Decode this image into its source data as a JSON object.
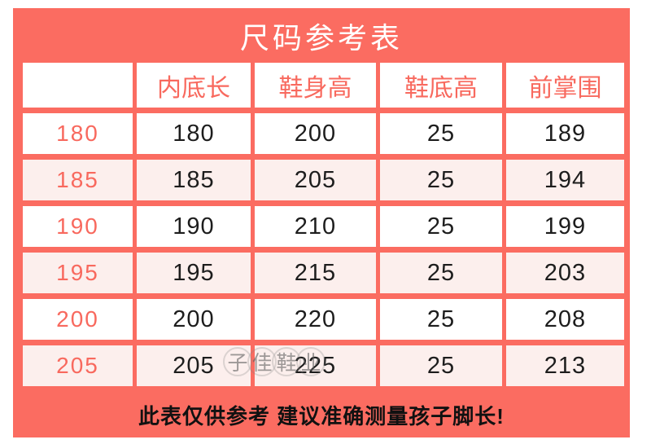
{
  "chart_data": {
    "type": "table",
    "title": "尺码参考表",
    "corner_label": "",
    "columns": [
      "内底长",
      "鞋身高",
      "鞋底高",
      "前掌围"
    ],
    "rows": [
      {
        "size": "180",
        "values": [
          "180",
          "200",
          "25",
          "189"
        ]
      },
      {
        "size": "185",
        "values": [
          "185",
          "205",
          "25",
          "194"
        ]
      },
      {
        "size": "190",
        "values": [
          "190",
          "210",
          "25",
          "199"
        ]
      },
      {
        "size": "195",
        "values": [
          "195",
          "215",
          "25",
          "203"
        ]
      },
      {
        "size": "200",
        "values": [
          "200",
          "220",
          "25",
          "208"
        ]
      },
      {
        "size": "205",
        "values": [
          "205",
          "225",
          "25",
          "213"
        ]
      }
    ],
    "footer_note": "此表仅供参考 建议准确测量孩子脚长!"
  },
  "watermark": {
    "text": "子佳鞋业",
    "chars": [
      "子",
      "佳",
      "鞋",
      "业"
    ]
  },
  "colors": {
    "coral": "#FB6C61",
    "row_alt": "#FCEFED",
    "accent_text": "#F8695E",
    "ink": "#1D1D1D"
  }
}
